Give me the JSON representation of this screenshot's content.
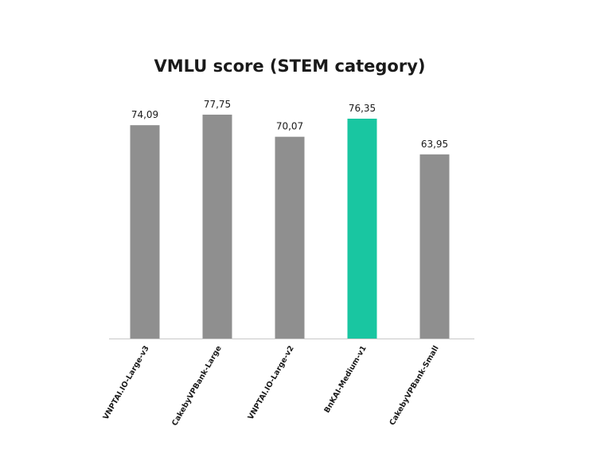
{
  "chart_data": {
    "type": "bar",
    "title": "VMLU score (STEM category)",
    "xlabel": "",
    "ylabel": "",
    "categories": [
      "VNPTAI.IO-Large-v3",
      "CakebyVPBank-Large",
      "VNPTAI.IO-Large-v2",
      "BnKAI-Medium-v1",
      "CakebyVPBank-Small"
    ],
    "values": [
      74.09,
      77.75,
      70.07,
      76.35,
      63.95
    ],
    "value_labels": [
      "74,09",
      "77,75",
      "70,07",
      "76,35",
      "63,95"
    ],
    "ylim": [
      0,
      80
    ],
    "grid": false,
    "legend": "none",
    "highlight_index": 3,
    "colors": {
      "bar": "#8f8f8f",
      "highlight": "#19c6a1",
      "axis": "#c8c8c8",
      "text": "#1a1a1a"
    }
  }
}
